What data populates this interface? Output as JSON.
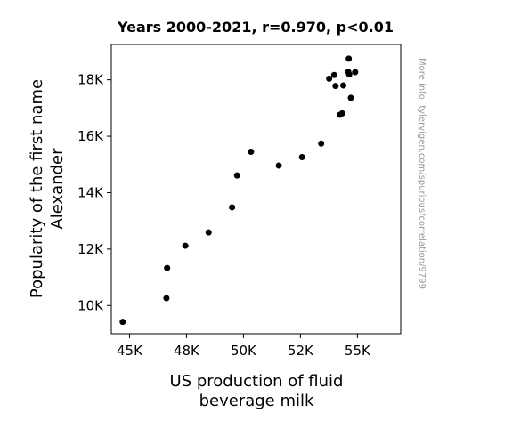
{
  "chart_data": {
    "type": "scatter",
    "title": "Years 2000-2021, r=0.970, p<0.01",
    "xlabel_lines": [
      "US production of fluid",
      "beverage milk"
    ],
    "ylabel_lines": [
      "Popularity of the first name",
      "Alexander"
    ],
    "side_note": "More info: tylervigen.com/spurious/correlation/9799",
    "xlim": [
      44200,
      56900
    ],
    "ylim": [
      9000,
      19250
    ],
    "x_ticks": [
      {
        "value": 45000,
        "label": "45K"
      },
      {
        "value": 47500,
        "label": "48K"
      },
      {
        "value": 50000,
        "label": "50K"
      },
      {
        "value": 52500,
        "label": "52K"
      },
      {
        "value": 55000,
        "label": "55K"
      }
    ],
    "y_ticks": [
      {
        "value": 10000,
        "label": "10K"
      },
      {
        "value": 12000,
        "label": "12K"
      },
      {
        "value": 14000,
        "label": "14K"
      },
      {
        "value": 16000,
        "label": "16K"
      },
      {
        "value": 18000,
        "label": "18K"
      }
    ],
    "point_color": "#000000",
    "points": [
      {
        "x": 44700,
        "y": 9420
      },
      {
        "x": 46620,
        "y": 10260
      },
      {
        "x": 46650,
        "y": 11330
      },
      {
        "x": 47450,
        "y": 12120
      },
      {
        "x": 48470,
        "y": 12590
      },
      {
        "x": 49500,
        "y": 13480
      },
      {
        "x": 49720,
        "y": 14610
      },
      {
        "x": 50330,
        "y": 15450
      },
      {
        "x": 51550,
        "y": 14960
      },
      {
        "x": 52570,
        "y": 15260
      },
      {
        "x": 53410,
        "y": 15740
      },
      {
        "x": 53760,
        "y": 18040
      },
      {
        "x": 53980,
        "y": 18170
      },
      {
        "x": 54040,
        "y": 17780
      },
      {
        "x": 54230,
        "y": 16760
      },
      {
        "x": 54330,
        "y": 16810
      },
      {
        "x": 54380,
        "y": 17800
      },
      {
        "x": 54600,
        "y": 18280
      },
      {
        "x": 54640,
        "y": 18190
      },
      {
        "x": 54620,
        "y": 18750
      },
      {
        "x": 54710,
        "y": 17360
      },
      {
        "x": 54900,
        "y": 18270
      }
    ]
  }
}
